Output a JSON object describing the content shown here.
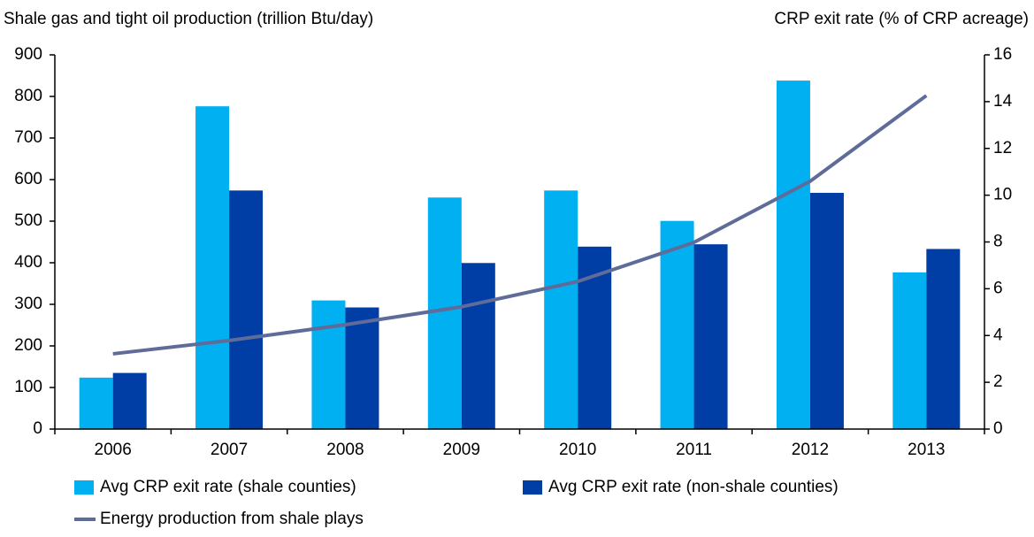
{
  "chart_data": {
    "type": "bar",
    "y_label": "Shale gas and tight oil production (trillion Btu/day)",
    "y2_label": "CRP exit rate (% of CRP acreage)",
    "categories": [
      "2006",
      "2007",
      "2008",
      "2009",
      "2010",
      "2011",
      "2012",
      "2013"
    ],
    "ylim": [
      0,
      900
    ],
    "yticks": [
      0,
      100,
      200,
      300,
      400,
      500,
      600,
      700,
      800,
      900
    ],
    "y2lim": [
      0,
      16
    ],
    "y2ticks": [
      0,
      2,
      4,
      6,
      8,
      10,
      12,
      14,
      16
    ],
    "series": [
      {
        "name": "Avg CRP exit rate (shale counties)",
        "color": "#00b0f0",
        "type": "bar",
        "axis": "y2",
        "values": [
          2.2,
          13.8,
          5.5,
          9.9,
          10.2,
          8.9,
          14.9,
          6.7
        ]
      },
      {
        "name": "Avg CRP exit rate (non-shale counties)",
        "color": "#003da5",
        "type": "bar",
        "axis": "y2",
        "values": [
          2.4,
          10.2,
          5.2,
          7.1,
          7.8,
          7.9,
          10.1,
          7.7
        ]
      },
      {
        "name": "Energy production from shale plays",
        "color": "#5f6b98",
        "type": "line",
        "axis": "y",
        "values": [
          181,
          213,
          251,
          294,
          355,
          449,
          596,
          802
        ]
      }
    ]
  }
}
